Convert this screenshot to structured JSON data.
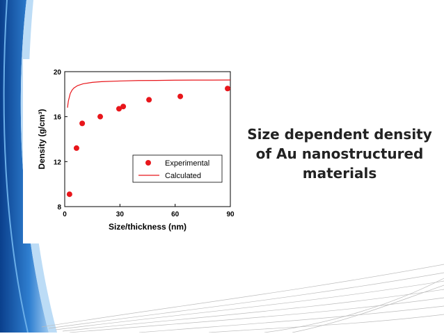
{
  "slide_title": [
    "Size dependent density",
    "of Au nanostructured",
    "materials"
  ],
  "chart_data": {
    "type": "scatter",
    "xlabel": "Size/thickness (nm)",
    "ylabel": "Density (g/cm³)",
    "xlim": [
      0,
      90
    ],
    "xticks": [
      0,
      30,
      60,
      90
    ],
    "ylim": [
      8,
      20
    ],
    "yticks": [
      8,
      12,
      16,
      20
    ],
    "legend": "lower right",
    "series": [
      {
        "name": "Experimental",
        "color": "#e8161b",
        "mode": "markers",
        "x": [
          2.6,
          6.4,
          9.5,
          19.3,
          29.5,
          31.8,
          45.8,
          62.8,
          88.5
        ],
        "values": [
          9.1,
          13.2,
          15.4,
          16.0,
          16.7,
          16.9,
          17.5,
          17.8,
          18.5
        ]
      },
      {
        "name": "Calculated",
        "color": "#e8161b",
        "mode": "line",
        "x": [
          1.5,
          2,
          3,
          4,
          5,
          7,
          10,
          15,
          20,
          30,
          40,
          50,
          60,
          70,
          80,
          90
        ],
        "values": [
          16.8,
          17.4,
          18.05,
          18.36,
          18.55,
          18.76,
          18.92,
          19.05,
          19.11,
          19.17,
          19.21,
          19.22,
          19.24,
          19.25,
          19.25,
          19.26
        ]
      }
    ]
  }
}
